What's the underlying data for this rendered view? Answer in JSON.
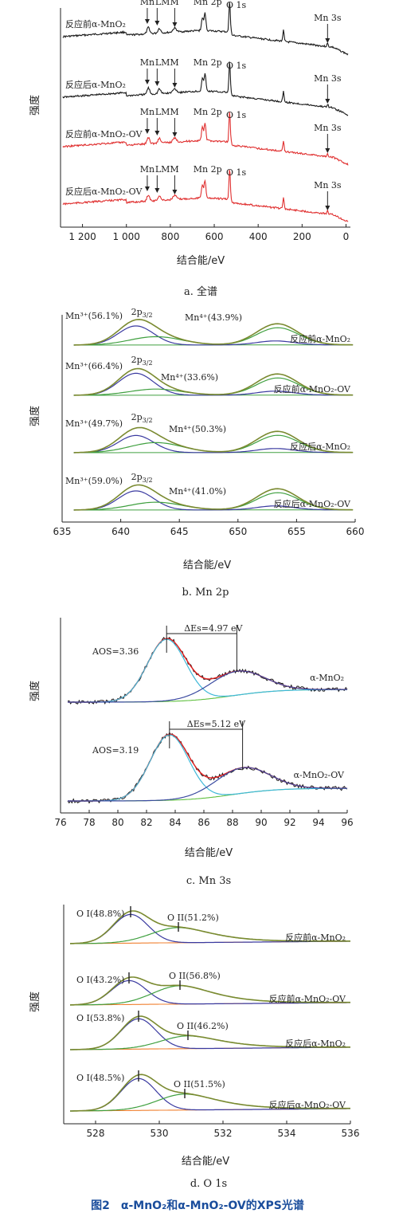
{
  "figure_caption": "图2　α-MnO₂和α-MnO₂-OV的XPS光谱",
  "colors": {
    "black": "#1a1a1a",
    "red": "#e03030",
    "envelope": "#7a8a30",
    "mn3": "#3a3aa0",
    "mn4": "#40a040",
    "bg": "#40a040",
    "o1": "#3a3aa0",
    "o2": "#40a040",
    "orange": "#f08030",
    "fit_red": "#e02020",
    "cyan": "#40b8d8",
    "blue": "#3a4aa0",
    "green": "#60c040",
    "mn3_text": "#5a3a90",
    "mn4_text": "#2a8a2a"
  },
  "panel_a": {
    "caption": "a. 全谱",
    "ylabel": "强度",
    "xlabel": "结合能/eV",
    "xticks": [
      "1 200",
      "1 000",
      "800",
      "600",
      "400",
      "200",
      "0"
    ],
    "arrow_labels": [
      "Mn",
      "LMM",
      "Mn 2p",
      "O 1s",
      "Mn 3s"
    ],
    "traces": [
      "反应前α-MnO₂",
      "反应后α-MnO₂",
      "反应前α-MnO₂-OV",
      "反应后α-MnO₂-OV"
    ]
  },
  "panel_b": {
    "caption": "b. Mn 2p",
    "ylabel": "强度",
    "xlabel": "结合能/eV",
    "xticks": [
      "635",
      "640",
      "645",
      "650",
      "655",
      "660"
    ],
    "peak_label": "2p",
    "peak_sub": "3/2",
    "traces": [
      {
        "name": "反应前α-MnO₂",
        "mn3": "Mn³⁺(56.1%)",
        "mn4": "Mn⁴⁺(43.9%)"
      },
      {
        "name": "反应前α-MnO₂-OV",
        "mn3": "Mn³⁺(66.4%)",
        "mn4": "Mn⁴⁺(33.6%)"
      },
      {
        "name": "反应后α-MnO₂",
        "mn3": "Mn³⁺(49.7%)",
        "mn4": "Mn⁴⁺(50.3%)"
      },
      {
        "name": "反应后α-MnO₂-OV",
        "mn3": "Mn³⁺(59.0%)",
        "mn4": "Mn⁴⁺(41.0%)"
      }
    ]
  },
  "panel_c": {
    "caption": "c. Mn 3s",
    "ylabel": "强度",
    "xlabel": "结合能/eV",
    "xticks": [
      "76",
      "78",
      "80",
      "82",
      "84",
      "86",
      "88",
      "90",
      "92",
      "94",
      "96"
    ],
    "traces": [
      {
        "name": "α-MnO₂",
        "aos": "AOS=3.36",
        "delta": "ΔEs=4.97 eV"
      },
      {
        "name": "α-MnO₂-OV",
        "aos": "AOS=3.19",
        "delta": "ΔEs=5.12 eV"
      }
    ]
  },
  "panel_d": {
    "caption": "d. O 1s",
    "ylabel": "强度",
    "xlabel": "结合能/eV",
    "xticks": [
      "528",
      "530",
      "532",
      "534",
      "536"
    ],
    "traces": [
      {
        "name": "反应前α-MnO₂",
        "o1": "O I(48.8%)",
        "o2": "O II(51.2%)"
      },
      {
        "name": "反应前α-MnO₂-OV",
        "o1": "O I(43.2%)",
        "o2": "O II(56.8%)"
      },
      {
        "name": "反应后α-MnO₂",
        "o1": "O I(53.8%)",
        "o2": "O II(46.2%)"
      },
      {
        "name": "反应后α-MnO₂-OV",
        "o1": "O I(48.5%)",
        "o2": "O II(51.5%)"
      }
    ]
  },
  "chart_data": [
    {
      "type": "line",
      "title": "a. 全谱",
      "xlabel": "结合能/eV",
      "ylabel": "强度",
      "xlim": [
        1300,
        -20
      ],
      "xticks": [
        1200,
        1000,
        800,
        600,
        400,
        200,
        0
      ],
      "series": [
        {
          "name": "反应前α-MnO₂"
        },
        {
          "name": "反应后α-MnO₂"
        },
        {
          "name": "反应前α-MnO₂-OV"
        },
        {
          "name": "反应后α-MnO₂-OV"
        }
      ],
      "annotations": [
        "Mn",
        "LMM",
        "Mn 2p",
        "O 1s",
        "Mn 3s"
      ]
    },
    {
      "type": "line",
      "title": "b. Mn 2p",
      "xlabel": "结合能/eV",
      "ylabel": "强度",
      "xlim": [
        635,
        660
      ],
      "series": [
        {
          "name": "反应前α-MnO₂",
          "Mn3+_percent": 56.1,
          "Mn4+_percent": 43.9
        },
        {
          "name": "反应前α-MnO₂-OV",
          "Mn3+_percent": 66.4,
          "Mn4+_percent": 33.6
        },
        {
          "name": "反应后α-MnO₂",
          "Mn3+_percent": 49.7,
          "Mn4+_percent": 50.3
        },
        {
          "name": "反应后α-MnO₂-OV",
          "Mn3+_percent": 59.0,
          "Mn4+_percent": 41.0
        }
      ]
    },
    {
      "type": "line",
      "title": "c. Mn 3s",
      "xlabel": "结合能/eV",
      "ylabel": "强度",
      "xlim": [
        76,
        96
      ],
      "series": [
        {
          "name": "α-MnO₂",
          "AOS": 3.36,
          "delta_Es_eV": 4.97,
          "peak1_eV": 83.4,
          "peak2_eV": 88.3
        },
        {
          "name": "α-MnO₂-OV",
          "AOS": 3.19,
          "delta_Es_eV": 5.12,
          "peak1_eV": 83.6,
          "peak2_eV": 88.7
        }
      ]
    },
    {
      "type": "line",
      "title": "d. O 1s",
      "xlabel": "结合能/eV",
      "ylabel": "强度",
      "xlim": [
        527,
        536
      ],
      "series": [
        {
          "name": "反应前α-MnO₂",
          "OI_percent": 48.8,
          "OII_percent": 51.2
        },
        {
          "name": "反应前α-MnO₂-OV",
          "OI_percent": 43.2,
          "OII_percent": 56.8
        },
        {
          "name": "反应后α-MnO₂",
          "OI_percent": 53.8,
          "OII_percent": 46.2
        },
        {
          "name": "反应后α-MnO₂-OV",
          "OI_percent": 48.5,
          "OII_percent": 51.5
        }
      ]
    }
  ]
}
